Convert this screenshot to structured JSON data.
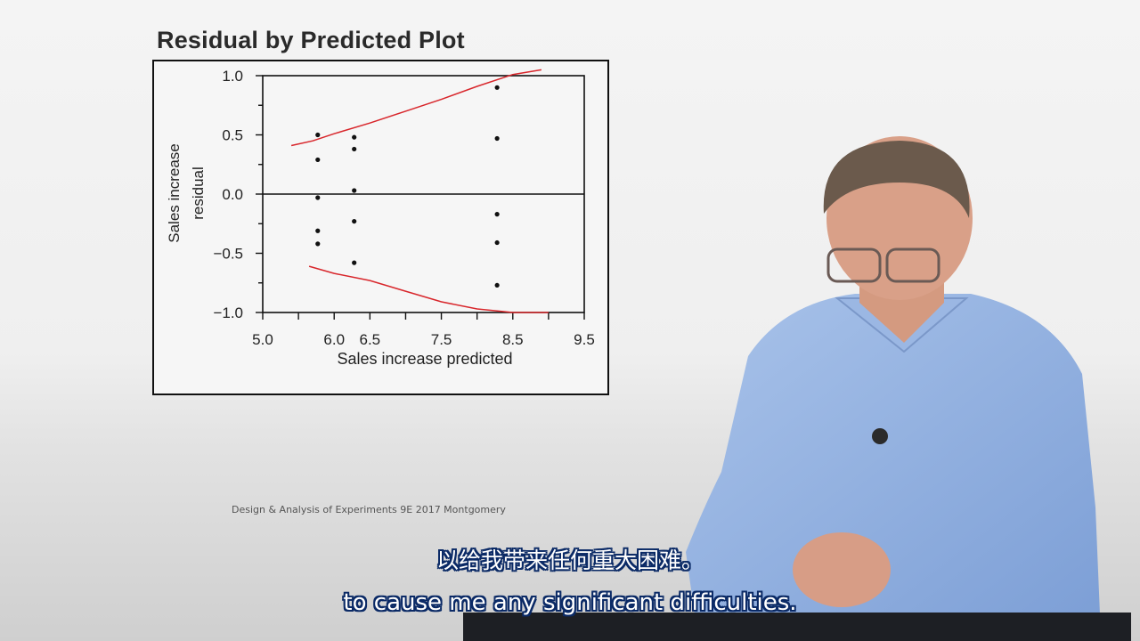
{
  "chart_data": {
    "type": "scatter",
    "title": "Residual by Predicted Plot",
    "xlabel": "Sales increase predicted",
    "ylabel": "Sales increase residual",
    "xlim": [
      5.0,
      9.5
    ],
    "ylim": [
      -1.0,
      1.0
    ],
    "x_ticks": [
      "5.0",
      "6.0",
      "6.5",
      "7.5",
      "8.5",
      "9.5"
    ],
    "x_tick_values": [
      5.0,
      6.0,
      6.5,
      7.5,
      8.5,
      9.5
    ],
    "y_ticks": [
      "1.0",
      "0.5",
      "0.0",
      "-0.5",
      "-1.0"
    ],
    "y_tick_values": [
      1.0,
      0.5,
      0.0,
      -0.5,
      -1.0
    ],
    "grid": false,
    "points": {
      "x": [
        5.77,
        5.77,
        5.77,
        5.77,
        5.77,
        6.28,
        6.28,
        6.28,
        6.28,
        6.28,
        8.28,
        8.28,
        8.28,
        8.28,
        8.28
      ],
      "y": [
        0.5,
        0.29,
        -0.03,
        -0.31,
        -0.42,
        0.48,
        0.38,
        0.03,
        -0.23,
        -0.58,
        0.9,
        0.47,
        -0.17,
        -0.41,
        -0.77
      ]
    },
    "upper_band": {
      "x": [
        5.4,
        5.7,
        6.0,
        6.5,
        7.0,
        7.5,
        8.0,
        8.5,
        8.9
      ],
      "y": [
        0.41,
        0.45,
        0.51,
        0.6,
        0.7,
        0.8,
        0.91,
        1.01,
        1.05
      ]
    },
    "lower_band": {
      "x": [
        5.65,
        6.0,
        6.5,
        7.0,
        7.5,
        8.0,
        8.5,
        9.0
      ],
      "y": [
        -0.61,
        -0.67,
        -0.73,
        -0.82,
        -0.91,
        -0.97,
        -1.0,
        -1.0
      ]
    },
    "band_color": "#d8262b",
    "point_color": "#111111"
  },
  "credit": "Design & Analysis of Experiments 9E 2017 Montgomery",
  "subtitles": {
    "chinese": "以给我带来任何重大困难。",
    "english": "to cause me any significant difficulties."
  }
}
